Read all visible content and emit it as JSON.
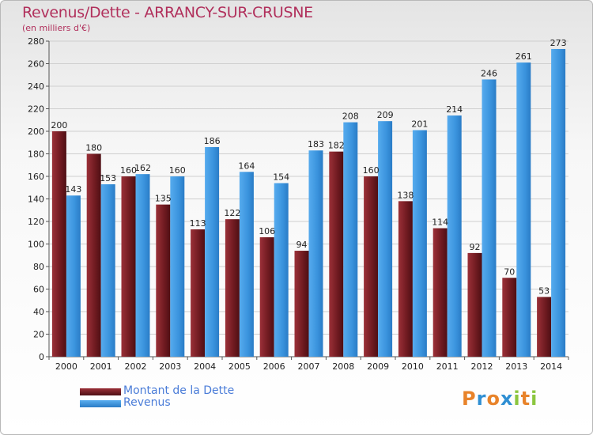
{
  "title": "Revenus/Dette - ARRANCY-SUR-CRUSNE",
  "subtitle": "(en milliers d'€)",
  "colors": {
    "dette": "#7a1f26",
    "revenus": "#3d97e0",
    "accent": "#b1305c"
  },
  "logo": {
    "letters": [
      "P",
      "r",
      "o",
      "x",
      "i",
      "t",
      "i"
    ],
    "colors": [
      "#e8832a",
      "#2f8fd3",
      "#e8832a",
      "#2f8fd3",
      "#8cc63f",
      "#e8832a",
      "#8cc63f"
    ]
  },
  "chart_data": {
    "type": "bar",
    "categories": [
      "2000",
      "2001",
      "2002",
      "2003",
      "2004",
      "2005",
      "2006",
      "2007",
      "2008",
      "2009",
      "2010",
      "2011",
      "2012",
      "2013",
      "2014"
    ],
    "series": [
      {
        "name": "Montant de la Dette",
        "values": [
          200,
          180,
          160,
          135,
          113,
          122,
          106,
          94,
          182,
          160,
          138,
          114,
          92,
          70,
          53
        ]
      },
      {
        "name": "Revenus",
        "values": [
          143,
          153,
          162,
          160,
          186,
          164,
          154,
          183,
          208,
          209,
          201,
          214,
          246,
          261,
          273
        ]
      }
    ],
    "ylim": [
      0,
      280
    ],
    "yticks": [
      0,
      20,
      40,
      60,
      80,
      100,
      120,
      140,
      160,
      180,
      200,
      220,
      240,
      260,
      280
    ],
    "grid": true,
    "legend": "bottom-left"
  }
}
